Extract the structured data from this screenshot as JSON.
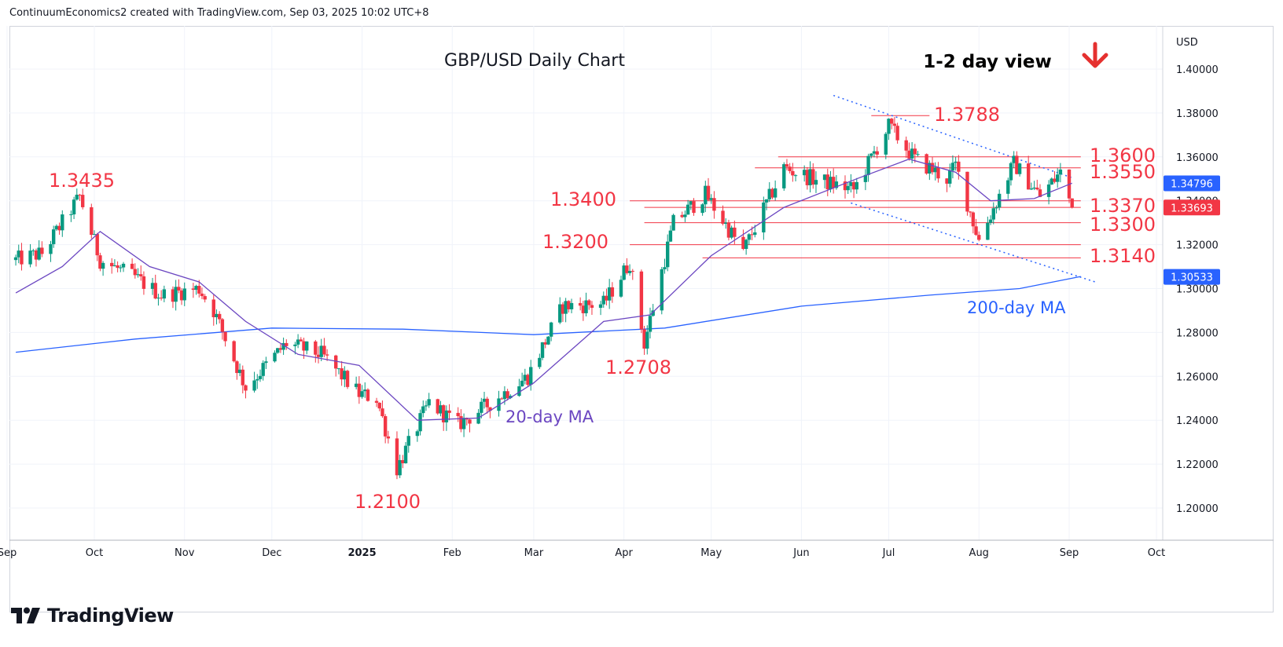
{
  "header": {
    "text": "ContinuumEconomics2 created with TradingView.com, Sep 03, 2025 10:02 UTC+8"
  },
  "brand": {
    "logo_text": "TradingView",
    "logo_icon": "tradingview-logo-icon"
  },
  "colors": {
    "up": "#089981",
    "down": "#f23645",
    "level": "#f23645",
    "ma20": "#6b46c1",
    "ma200": "#2962ff",
    "grid": "#f0f3fa",
    "axis_text": "#131722",
    "trend": "#2962ff"
  },
  "chart_data": {
    "type": "candlestick",
    "title": "GBP/USD Daily Chart",
    "currency": "USD",
    "view_label": "1-2 day view",
    "view_icon": "arrow-down-icon",
    "y_ticks": [
      "1.40000",
      "1.38000",
      "1.36000",
      "1.34000",
      "1.32000",
      "1.30000",
      "1.28000",
      "1.26000",
      "1.24000",
      "1.22000",
      "1.20000"
    ],
    "x_ticks": [
      "Sep",
      "Oct",
      "Nov",
      "Dec",
      "2025",
      "Feb",
      "Mar",
      "Apr",
      "May",
      "Jun",
      "Jul",
      "Aug",
      "Sep",
      "Oct"
    ],
    "price_labels": [
      {
        "value": 1.34796,
        "text": "1.34796",
        "color": "#2962ff"
      },
      {
        "value": 1.33693,
        "text": "1.33693",
        "color": "#f23645"
      },
      {
        "value": 1.30533,
        "text": "1.30533",
        "color": "#2962ff"
      }
    ],
    "levels": [
      {
        "value": 1.3788,
        "text": "1.3788"
      },
      {
        "value": 1.36,
        "text": "1.3600"
      },
      {
        "value": 1.355,
        "text": "1.3550"
      },
      {
        "value": 1.34,
        "text": "1.3400"
      },
      {
        "value": 1.337,
        "text": "1.3370"
      },
      {
        "value": 1.33,
        "text": "1.3300"
      },
      {
        "value": 1.32,
        "text": "1.3200"
      },
      {
        "value": 1.314,
        "text": "1.3140"
      }
    ],
    "annotations": [
      {
        "text": "1.3435",
        "value": 1.3435
      },
      {
        "text": "1.2100",
        "value": 1.21
      },
      {
        "text": "1.2708",
        "value": 1.2708
      },
      {
        "text": "20-day MA",
        "series": "ma20"
      },
      {
        "text": "200-day MA",
        "series": "ma200"
      }
    ],
    "anchors": [
      {
        "date": "2024-09-04",
        "close": 1.313
      },
      {
        "date": "2024-09-13",
        "close": 1.316
      },
      {
        "date": "2024-09-26",
        "close": 1.342
      },
      {
        "date": "2024-10-03",
        "close": 1.313
      },
      {
        "date": "2024-10-15",
        "close": 1.305
      },
      {
        "date": "2024-10-24",
        "close": 1.297
      },
      {
        "date": "2024-11-06",
        "close": 1.3
      },
      {
        "date": "2024-11-11",
        "close": 1.29
      },
      {
        "date": "2024-11-22",
        "close": 1.255
      },
      {
        "date": "2024-12-06",
        "close": 1.275
      },
      {
        "date": "2024-12-18",
        "close": 1.27
      },
      {
        "date": "2024-12-31",
        "close": 1.252
      },
      {
        "date": "2025-01-06",
        "close": 1.25
      },
      {
        "date": "2025-01-13",
        "close": 1.218
      },
      {
        "date": "2025-01-24",
        "close": 1.248
      },
      {
        "date": "2025-02-03",
        "close": 1.238
      },
      {
        "date": "2025-02-11",
        "close": 1.245
      },
      {
        "date": "2025-02-27",
        "close": 1.26
      },
      {
        "date": "2025-03-11",
        "close": 1.292
      },
      {
        "date": "2025-03-25",
        "close": 1.293
      },
      {
        "date": "2025-04-03",
        "close": 1.312
      },
      {
        "date": "2025-04-08",
        "close": 1.275
      },
      {
        "date": "2025-04-18",
        "close": 1.33
      },
      {
        "date": "2025-04-29",
        "close": 1.343
      },
      {
        "date": "2025-05-12",
        "close": 1.317
      },
      {
        "date": "2025-05-26",
        "close": 1.355
      },
      {
        "date": "2025-06-05",
        "close": 1.35
      },
      {
        "date": "2025-06-19",
        "close": 1.345
      },
      {
        "date": "2025-07-01",
        "close": 1.374
      },
      {
        "date": "2025-07-10",
        "close": 1.359
      },
      {
        "date": "2025-07-21",
        "close": 1.35
      },
      {
        "date": "2025-07-24",
        "close": 1.356
      },
      {
        "date": "2025-08-01",
        "close": 1.322
      },
      {
        "date": "2025-08-13",
        "close": 1.357
      },
      {
        "date": "2025-08-22",
        "close": 1.342
      },
      {
        "date": "2025-08-29",
        "close": 1.353
      },
      {
        "date": "2025-09-02",
        "close": 1.3369
      }
    ],
    "ma20_series": [
      {
        "date": "2024-09-04",
        "value": 1.298
      },
      {
        "date": "2024-09-20",
        "value": 1.31
      },
      {
        "date": "2024-10-03",
        "value": 1.326
      },
      {
        "date": "2024-10-20",
        "value": 1.31
      },
      {
        "date": "2024-11-06",
        "value": 1.303
      },
      {
        "date": "2024-11-22",
        "value": 1.285
      },
      {
        "date": "2024-12-10",
        "value": 1.27
      },
      {
        "date": "2024-12-31",
        "value": 1.265
      },
      {
        "date": "2025-01-20",
        "value": 1.24
      },
      {
        "date": "2025-02-10",
        "value": 1.241
      },
      {
        "date": "2025-03-01",
        "value": 1.257
      },
      {
        "date": "2025-03-25",
        "value": 1.285
      },
      {
        "date": "2025-04-10",
        "value": 1.288
      },
      {
        "date": "2025-05-01",
        "value": 1.315
      },
      {
        "date": "2025-05-26",
        "value": 1.337
      },
      {
        "date": "2025-06-20",
        "value": 1.35
      },
      {
        "date": "2025-07-08",
        "value": 1.359
      },
      {
        "date": "2025-07-24",
        "value": 1.353
      },
      {
        "date": "2025-08-05",
        "value": 1.34
      },
      {
        "date": "2025-08-20",
        "value": 1.341
      },
      {
        "date": "2025-09-02",
        "value": 1.348
      }
    ],
    "ma200_series": [
      {
        "date": "2024-09-04",
        "value": 1.271
      },
      {
        "date": "2024-10-15",
        "value": 1.277
      },
      {
        "date": "2024-12-01",
        "value": 1.282
      },
      {
        "date": "2025-01-15",
        "value": 1.2815
      },
      {
        "date": "2025-03-01",
        "value": 1.279
      },
      {
        "date": "2025-04-15",
        "value": 1.282
      },
      {
        "date": "2025-06-01",
        "value": 1.292
      },
      {
        "date": "2025-07-15",
        "value": 1.297
      },
      {
        "date": "2025-08-15",
        "value": 1.3
      },
      {
        "date": "2025-09-05",
        "value": 1.3055
      }
    ],
    "trendlines": [
      {
        "from": {
          "date": "2025-06-12",
          "value": 1.388
        },
        "to": {
          "date": "2025-09-02",
          "value": 1.3505
        }
      },
      {
        "from": {
          "date": "2025-06-18",
          "value": 1.339
        },
        "to": {
          "date": "2025-09-10",
          "value": 1.303
        }
      }
    ]
  }
}
